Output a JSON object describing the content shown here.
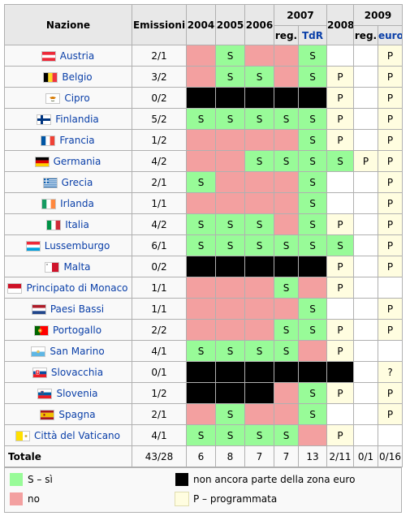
{
  "header": {
    "nazione": "Nazione",
    "emissioni": "Emissioni",
    "y2004": "2004",
    "y2005": "2005",
    "y2006": "2006",
    "y2007": "2007",
    "y2008": "2008",
    "y2009": "2009",
    "reg": "reg.",
    "tdr": "TdR",
    "euro": "euro"
  },
  "flag_colors": {
    "austria": [
      "#ed2939",
      "#ffffff",
      "#ed2939"
    ],
    "belgium": [
      "#000000",
      "#fdda24",
      "#ef3340"
    ]
  },
  "rows": [
    {
      "name": "Austria",
      "flag": "austria-flag",
      "emissions": "2/1",
      "cells": [
        {
          "c": "N",
          "t": ""
        },
        {
          "c": "S",
          "t": "S"
        },
        {
          "c": "N",
          "t": ""
        },
        {
          "c": "N",
          "t": ""
        },
        {
          "c": "S",
          "t": "S"
        },
        {
          "c": "E",
          "t": ""
        },
        {
          "c": "E",
          "t": ""
        },
        {
          "c": "P",
          "t": "P"
        }
      ]
    },
    {
      "name": "Belgio",
      "flag": "belgium-flag",
      "emissions": "3/2",
      "cells": [
        {
          "c": "N",
          "t": ""
        },
        {
          "c": "S",
          "t": "S"
        },
        {
          "c": "S",
          "t": "S"
        },
        {
          "c": "N",
          "t": ""
        },
        {
          "c": "S",
          "t": "S"
        },
        {
          "c": "P",
          "t": "P"
        },
        {
          "c": "E",
          "t": ""
        },
        {
          "c": "P",
          "t": "P"
        }
      ]
    },
    {
      "name": "Cipro",
      "flag": "cyprus-flag",
      "emissions": "0/2",
      "cells": [
        {
          "c": "B",
          "t": ""
        },
        {
          "c": "B",
          "t": ""
        },
        {
          "c": "B",
          "t": ""
        },
        {
          "c": "B",
          "t": ""
        },
        {
          "c": "B",
          "t": ""
        },
        {
          "c": "P",
          "t": "P"
        },
        {
          "c": "E",
          "t": ""
        },
        {
          "c": "P",
          "t": "P"
        }
      ]
    },
    {
      "name": "Finlandia",
      "flag": "finland-flag",
      "emissions": "5/2",
      "cells": [
        {
          "c": "S",
          "t": "S"
        },
        {
          "c": "S",
          "t": "S"
        },
        {
          "c": "S",
          "t": "S"
        },
        {
          "c": "S",
          "t": "S"
        },
        {
          "c": "S",
          "t": "S"
        },
        {
          "c": "P",
          "t": "P"
        },
        {
          "c": "E",
          "t": ""
        },
        {
          "c": "P",
          "t": "P"
        }
      ]
    },
    {
      "name": "Francia",
      "flag": "france-flag",
      "emissions": "1/2",
      "cells": [
        {
          "c": "N",
          "t": ""
        },
        {
          "c": "N",
          "t": ""
        },
        {
          "c": "N",
          "t": ""
        },
        {
          "c": "N",
          "t": ""
        },
        {
          "c": "S",
          "t": "S"
        },
        {
          "c": "P",
          "t": "P"
        },
        {
          "c": "E",
          "t": ""
        },
        {
          "c": "P",
          "t": "P"
        }
      ]
    },
    {
      "name": "Germania",
      "flag": "germany-flag",
      "emissions": "4/2",
      "cells": [
        {
          "c": "N",
          "t": ""
        },
        {
          "c": "N",
          "t": ""
        },
        {
          "c": "S",
          "t": "S"
        },
        {
          "c": "S",
          "t": "S"
        },
        {
          "c": "S",
          "t": "S"
        },
        {
          "c": "S",
          "t": "S"
        },
        {
          "c": "P",
          "t": "P"
        },
        {
          "c": "P",
          "t": "P"
        }
      ]
    },
    {
      "name": "Grecia",
      "flag": "greece-flag",
      "emissions": "2/1",
      "cells": [
        {
          "c": "S",
          "t": "S"
        },
        {
          "c": "N",
          "t": ""
        },
        {
          "c": "N",
          "t": ""
        },
        {
          "c": "N",
          "t": ""
        },
        {
          "c": "S",
          "t": "S"
        },
        {
          "c": "E",
          "t": ""
        },
        {
          "c": "E",
          "t": ""
        },
        {
          "c": "P",
          "t": "P"
        }
      ]
    },
    {
      "name": "Irlanda",
      "flag": "ireland-flag",
      "emissions": "1/1",
      "cells": [
        {
          "c": "N",
          "t": ""
        },
        {
          "c": "N",
          "t": ""
        },
        {
          "c": "N",
          "t": ""
        },
        {
          "c": "N",
          "t": ""
        },
        {
          "c": "S",
          "t": "S"
        },
        {
          "c": "E",
          "t": ""
        },
        {
          "c": "E",
          "t": ""
        },
        {
          "c": "P",
          "t": "P"
        }
      ]
    },
    {
      "name": "Italia",
      "flag": "italy-flag",
      "emissions": "4/2",
      "cells": [
        {
          "c": "S",
          "t": "S"
        },
        {
          "c": "S",
          "t": "S"
        },
        {
          "c": "S",
          "t": "S"
        },
        {
          "c": "N",
          "t": ""
        },
        {
          "c": "S",
          "t": "S"
        },
        {
          "c": "P",
          "t": "P"
        },
        {
          "c": "E",
          "t": ""
        },
        {
          "c": "P",
          "t": "P"
        }
      ]
    },
    {
      "name": "Lussemburgo",
      "flag": "luxembourg-flag",
      "emissions": "6/1",
      "cells": [
        {
          "c": "S",
          "t": "S"
        },
        {
          "c": "S",
          "t": "S"
        },
        {
          "c": "S",
          "t": "S"
        },
        {
          "c": "S",
          "t": "S"
        },
        {
          "c": "S",
          "t": "S"
        },
        {
          "c": "S",
          "t": "S"
        },
        {
          "c": "E",
          "t": ""
        },
        {
          "c": "P",
          "t": "P"
        }
      ]
    },
    {
      "name": "Malta",
      "flag": "malta-flag",
      "emissions": "0/2",
      "cells": [
        {
          "c": "B",
          "t": ""
        },
        {
          "c": "B",
          "t": ""
        },
        {
          "c": "B",
          "t": ""
        },
        {
          "c": "B",
          "t": ""
        },
        {
          "c": "B",
          "t": ""
        },
        {
          "c": "P",
          "t": "P"
        },
        {
          "c": "E",
          "t": ""
        },
        {
          "c": "P",
          "t": "P"
        }
      ]
    },
    {
      "name": "Principato di Monaco",
      "flag": "monaco-flag",
      "emissions": "1/1",
      "cells": [
        {
          "c": "N",
          "t": ""
        },
        {
          "c": "N",
          "t": ""
        },
        {
          "c": "N",
          "t": ""
        },
        {
          "c": "S",
          "t": "S"
        },
        {
          "c": "N",
          "t": ""
        },
        {
          "c": "P",
          "t": "P"
        },
        {
          "c": "E",
          "t": ""
        },
        {
          "c": "E",
          "t": ""
        }
      ]
    },
    {
      "name": "Paesi Bassi",
      "flag": "netherlands-flag",
      "emissions": "1/1",
      "cells": [
        {
          "c": "N",
          "t": ""
        },
        {
          "c": "N",
          "t": ""
        },
        {
          "c": "N",
          "t": ""
        },
        {
          "c": "N",
          "t": ""
        },
        {
          "c": "S",
          "t": "S"
        },
        {
          "c": "E",
          "t": ""
        },
        {
          "c": "E",
          "t": ""
        },
        {
          "c": "P",
          "t": "P"
        }
      ]
    },
    {
      "name": "Portogallo",
      "flag": "portugal-flag",
      "emissions": "2/2",
      "cells": [
        {
          "c": "N",
          "t": ""
        },
        {
          "c": "N",
          "t": ""
        },
        {
          "c": "N",
          "t": ""
        },
        {
          "c": "S",
          "t": "S"
        },
        {
          "c": "S",
          "t": "S"
        },
        {
          "c": "P",
          "t": "P"
        },
        {
          "c": "E",
          "t": ""
        },
        {
          "c": "P",
          "t": "P"
        }
      ]
    },
    {
      "name": "San Marino",
      "flag": "san-marino-flag",
      "emissions": "4/1",
      "cells": [
        {
          "c": "S",
          "t": "S"
        },
        {
          "c": "S",
          "t": "S"
        },
        {
          "c": "S",
          "t": "S"
        },
        {
          "c": "S",
          "t": "S"
        },
        {
          "c": "N",
          "t": ""
        },
        {
          "c": "P",
          "t": "P"
        },
        {
          "c": "E",
          "t": ""
        },
        {
          "c": "E",
          "t": ""
        }
      ]
    },
    {
      "name": "Slovacchia",
      "flag": "slovakia-flag",
      "emissions": "0/1",
      "cells": [
        {
          "c": "B",
          "t": ""
        },
        {
          "c": "B",
          "t": ""
        },
        {
          "c": "B",
          "t": ""
        },
        {
          "c": "B",
          "t": ""
        },
        {
          "c": "B",
          "t": ""
        },
        {
          "c": "B",
          "t": ""
        },
        {
          "c": "E",
          "t": ""
        },
        {
          "c": "P",
          "t": "?"
        }
      ]
    },
    {
      "name": "Slovenia",
      "flag": "slovenia-flag",
      "emissions": "1/2",
      "cells": [
        {
          "c": "B",
          "t": ""
        },
        {
          "c": "B",
          "t": ""
        },
        {
          "c": "B",
          "t": ""
        },
        {
          "c": "N",
          "t": ""
        },
        {
          "c": "S",
          "t": "S"
        },
        {
          "c": "P",
          "t": "P"
        },
        {
          "c": "E",
          "t": ""
        },
        {
          "c": "P",
          "t": "P"
        }
      ]
    },
    {
      "name": "Spagna",
      "flag": "spain-flag",
      "emissions": "2/1",
      "cells": [
        {
          "c": "N",
          "t": ""
        },
        {
          "c": "S",
          "t": "S"
        },
        {
          "c": "N",
          "t": ""
        },
        {
          "c": "N",
          "t": ""
        },
        {
          "c": "S",
          "t": "S"
        },
        {
          "c": "E",
          "t": ""
        },
        {
          "c": "E",
          "t": ""
        },
        {
          "c": "P",
          "t": "P"
        }
      ]
    },
    {
      "name": "Città del Vaticano",
      "flag": "vatican-flag",
      "emissions": "4/1",
      "cells": [
        {
          "c": "S",
          "t": "S"
        },
        {
          "c": "S",
          "t": "S"
        },
        {
          "c": "S",
          "t": "S"
        },
        {
          "c": "S",
          "t": "S"
        },
        {
          "c": "N",
          "t": ""
        },
        {
          "c": "P",
          "t": "P"
        },
        {
          "c": "E",
          "t": ""
        },
        {
          "c": "E",
          "t": ""
        }
      ]
    }
  ],
  "total": {
    "label": "Totale",
    "values": [
      "43/28",
      "6",
      "8",
      "7",
      "7",
      "13",
      "2/11",
      "0/1",
      "0/16"
    ]
  },
  "legend": {
    "yes": "S – sì",
    "no": "no",
    "not_euro": "non ancora parte della zona euro",
    "planned": "P – programmata"
  },
  "colors": {
    "yes": "#98fb98",
    "no": "#f3a0a0",
    "not_euro": "#000000",
    "planned": "#fffde0"
  }
}
